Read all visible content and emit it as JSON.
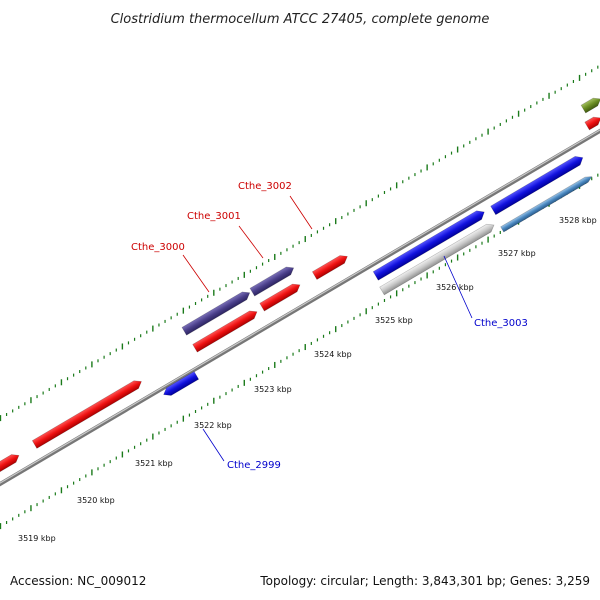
{
  "title": "Clostridium thermocellum ATCC 27405, complete genome",
  "accession": "Accession: NC_009012",
  "summary": "Topology: circular; Length: 3,843,301 bp; Genes: 3,259",
  "kbp_labels": [
    "3519 kbp",
    "3520 kbp",
    "3521 kbp",
    "3522 kbp",
    "3523 kbp",
    "3524 kbp",
    "3525 kbp",
    "3526 kbp",
    "3527 kbp",
    "3528 kbp"
  ],
  "gene_labels": [
    {
      "name": "Cthe_3000",
      "color": "#cc0000"
    },
    {
      "name": "Cthe_3001",
      "color": "#cc0000"
    },
    {
      "name": "Cthe_3002",
      "color": "#cc0000"
    },
    {
      "name": "Cthe_3003",
      "color": "#0000cc"
    },
    {
      "name": "Cthe_2999",
      "color": "#0000cc"
    }
  ],
  "colors": {
    "backbone": "#888888",
    "forward_cds": "#ee1111",
    "reverse_cds": "#1111dd",
    "highlight": "#4a3f8a",
    "rna": "#c8c8c8",
    "other": "#4a88c0",
    "olive": "#6b8e23",
    "ticks": "#1a7a1a"
  }
}
